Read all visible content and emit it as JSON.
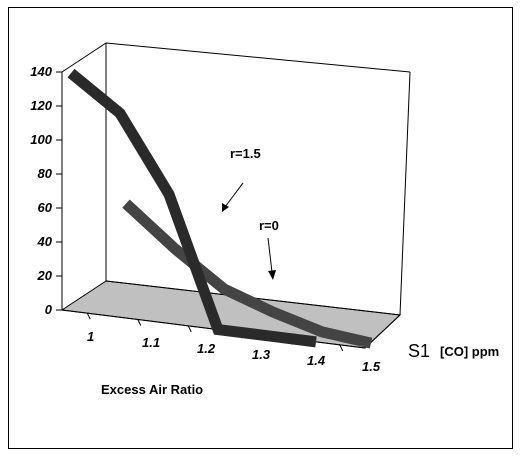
{
  "chart_data": {
    "type": "line",
    "style": "3d-ribbon",
    "categories": [
      "1",
      "1.1",
      "1.2",
      "1.3",
      "1.4",
      "1.5"
    ],
    "ylim": [
      0,
      140
    ],
    "yticks": [
      "0",
      "20",
      "40",
      "60",
      "80",
      "100",
      "120",
      "140"
    ],
    "xlabel": "Excess Air Ratio",
    "depth_label": "S1",
    "zlabel": "[CO] ppm",
    "series": [
      {
        "name": "r=1.5",
        "values": [
          140,
          120,
          76,
          0,
          0,
          0
        ],
        "color": "#2a2a2a"
      },
      {
        "name": "r=0",
        "values": [
          65,
          42,
          22,
          12,
          4,
          1
        ],
        "color": "#444444"
      }
    ],
    "annotations": [
      "r=1.5",
      "r=0"
    ],
    "floor_color": "#c0c0c0"
  }
}
